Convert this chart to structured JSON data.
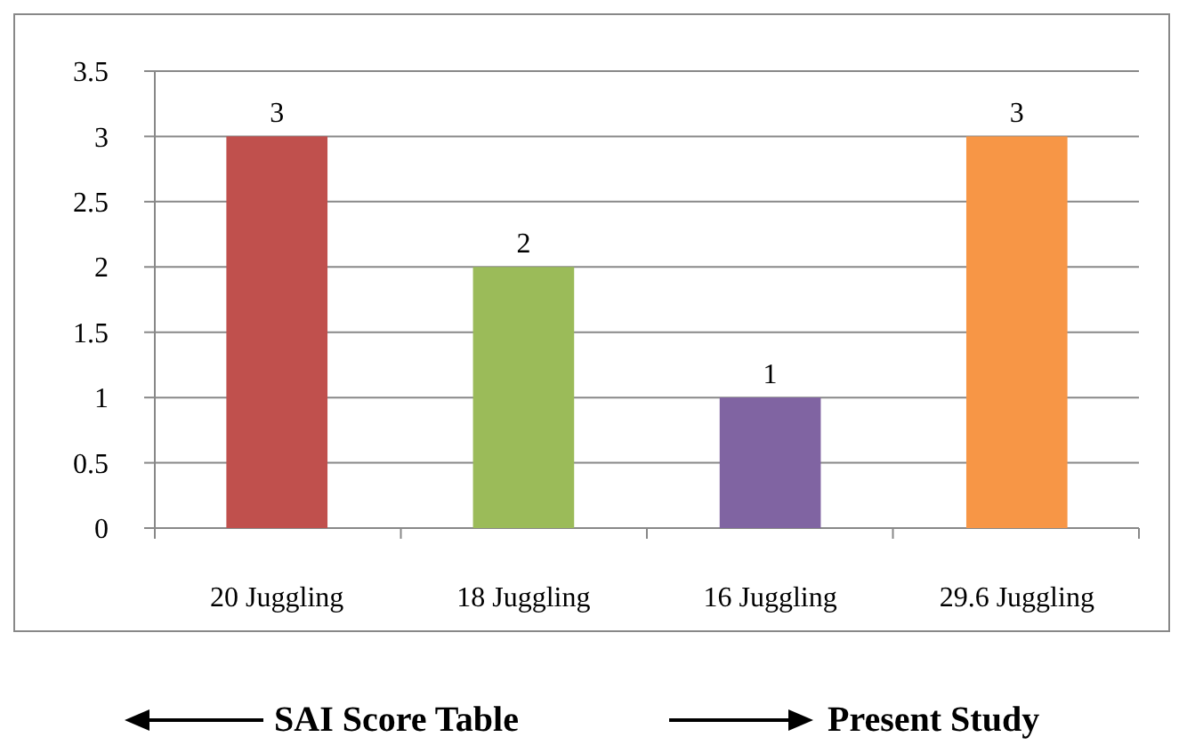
{
  "chart_data": {
    "type": "bar",
    "categories": [
      "20 Juggling",
      "18 Juggling",
      "16 Juggling",
      "29.6 Juggling"
    ],
    "values": [
      3,
      2,
      1,
      3
    ],
    "colors": [
      "#c0504d",
      "#9bbb59",
      "#8064a2",
      "#f79646"
    ],
    "ylim": [
      0,
      3.5
    ],
    "yticks": [
      0,
      0.5,
      1,
      1.5,
      2,
      2.5,
      3,
      3.5
    ],
    "grid": "y",
    "data_labels": true,
    "annotations": [
      "SAI Score Table",
      "Present Study"
    ]
  }
}
